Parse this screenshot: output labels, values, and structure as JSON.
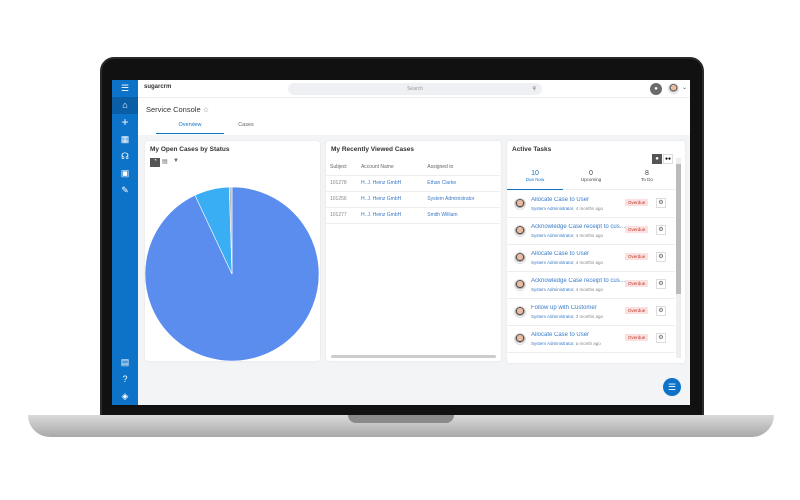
{
  "app": {
    "logo": "sugarcrm",
    "search_placeholder": "Search"
  },
  "nav": {
    "icons": [
      "menu-icon",
      "home-icon",
      "plus-icon",
      "grid-icon",
      "headset-icon",
      "calendar-icon",
      "edit-icon"
    ],
    "bottom_icons": [
      "document-icon",
      "help-icon",
      "layers-icon"
    ]
  },
  "header": {
    "title": "Service Console",
    "tabs": [
      "Overview",
      "Cases"
    ]
  },
  "pie_card": {
    "title": "My Open Cases by Status"
  },
  "chart_data": {
    "type": "pie",
    "values": [
      93,
      6.5,
      0.5
    ],
    "colors": [
      "#5b8def",
      "#39aef5",
      "#bbbbbb"
    ]
  },
  "cases": {
    "title": "My Recently Viewed Cases",
    "columns": [
      "Subject",
      "Account Name",
      "Assigned to"
    ],
    "rows": [
      [
        "101278",
        "H. J. Heinz GmbH",
        "Ethan Clarke"
      ],
      [
        "101256",
        "H. J. Heinz GmbH",
        "System Administrator"
      ],
      [
        "101277",
        "H. J. Heinz GmbH",
        "Smith William"
      ]
    ]
  },
  "tasks": {
    "title": "Active Tasks",
    "tabs": [
      {
        "count": "10",
        "label": "Due Now"
      },
      {
        "count": "0",
        "label": "Upcoming"
      },
      {
        "count": "8",
        "label": "To Do"
      }
    ],
    "items": [
      {
        "name": "Allocate Case to User",
        "user": "System Administrator",
        "time": ", 4 months ago",
        "status": "Overdue"
      },
      {
        "name": "Acknowledge Case receipt to customer",
        "user": "System Administrator",
        "time": ", 4 months ago",
        "status": "Overdue"
      },
      {
        "name": "Allocate Case to User",
        "user": "System Administrator",
        "time": ", 4 months ago",
        "status": "Overdue"
      },
      {
        "name": "Acknowledge Case receipt to customer",
        "user": "System Administrator",
        "time": ", 4 months ago",
        "status": "Overdue"
      },
      {
        "name": "Follow up with Customer",
        "user": "System Administrator",
        "time": ", 3 months ago",
        "status": "Overdue"
      },
      {
        "name": "Allocate Case to User",
        "user": "System Administrator",
        "time": ", a month ago",
        "status": "Overdue"
      }
    ]
  }
}
